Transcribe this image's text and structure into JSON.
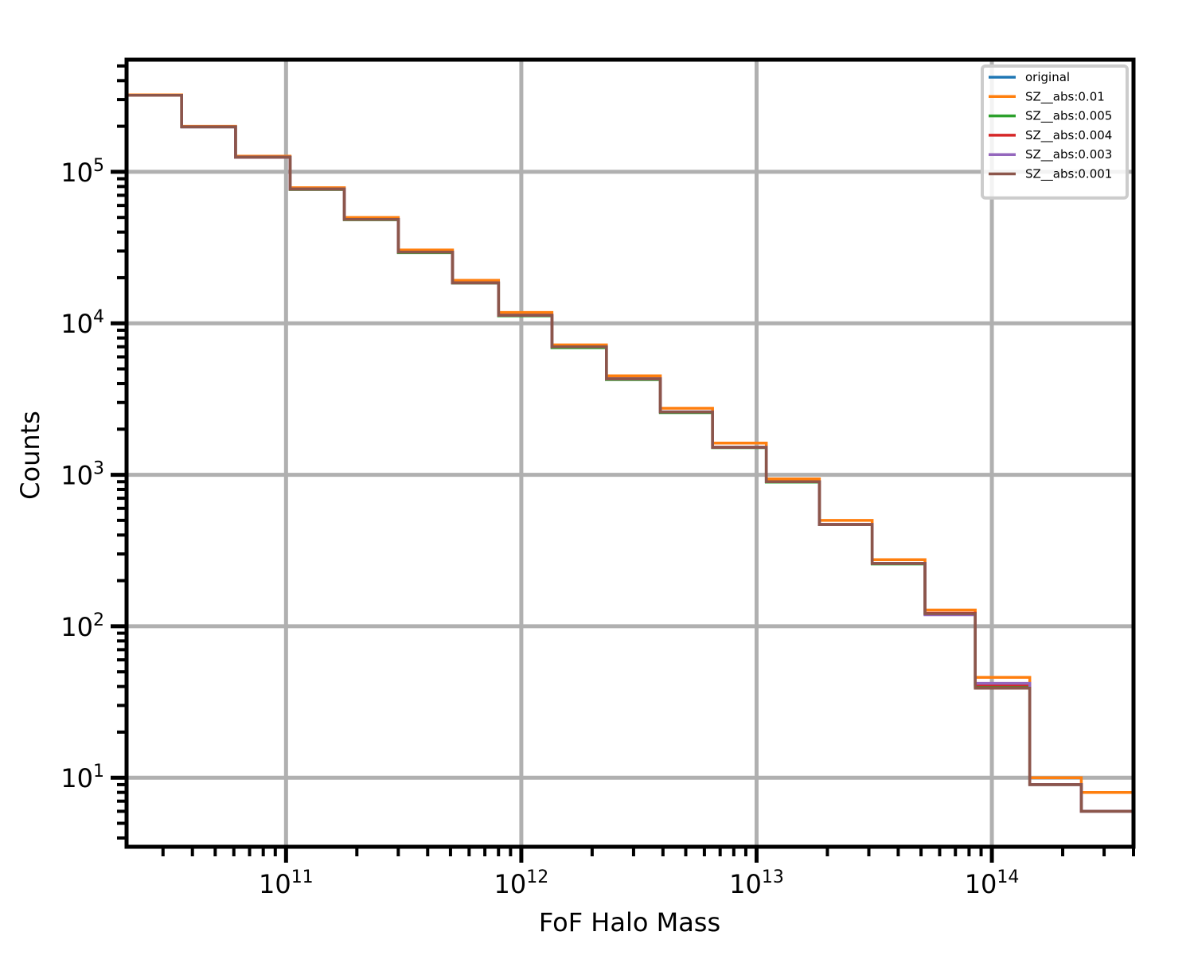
{
  "chart_data": {
    "type": "line",
    "subtype": "step-histogram",
    "title": "",
    "xlabel": "FoF Halo Mass",
    "ylabel": "Counts",
    "xscale": "log",
    "yscale": "log",
    "xlim": [
      21000000000.0,
      400000000000000.0
    ],
    "ylim": [
      3.5,
      550000.0
    ],
    "grid": true,
    "legend_position": "upper-right",
    "x_ticks": [
      {
        "value": 100000000000.0,
        "base": "10",
        "exp": "11"
      },
      {
        "value": 1000000000000.0,
        "base": "10",
        "exp": "12"
      },
      {
        "value": 10000000000000.0,
        "base": "10",
        "exp": "13"
      },
      {
        "value": 100000000000000.0,
        "base": "10",
        "exp": "14"
      }
    ],
    "y_ticks": [
      {
        "value": 10,
        "base": "10",
        "exp": "1"
      },
      {
        "value": 100,
        "base": "10",
        "exp": "2"
      },
      {
        "value": 1000,
        "base": "10",
        "exp": "3"
      },
      {
        "value": 10000,
        "base": "10",
        "exp": "4"
      },
      {
        "value": 100000,
        "base": "10",
        "exp": "5"
      }
    ],
    "bin_edges": [
      21000000000.0,
      36000000000.0,
      61000000000.0,
      104000000000.0,
      177000000000.0,
      300000000000.0,
      510000000000.0,
      800000000000.0,
      1350000000000.0,
      2300000000000.0,
      3900000000000.0,
      6500000000000.0,
      11000000000000.0,
      18500000000000.0,
      31000000000000.0,
      52000000000000.0,
      85000000000000.0,
      145000000000000.0,
      240000000000000.0,
      400000000000000.0
    ],
    "series": [
      {
        "name": "original",
        "color": "#1f77b4",
        "values": [
          320000,
          198000,
          125000,
          77000,
          48500,
          29500,
          18500,
          11300,
          7000,
          4300,
          2600,
          1520,
          900,
          470,
          260,
          121,
          40,
          9,
          6
        ]
      },
      {
        "name": "SZ__abs:0.01",
        "color": "#ff7f0e",
        "values": [
          322000,
          200000,
          127000,
          78500,
          50000,
          30500,
          19200,
          11800,
          7200,
          4500,
          2750,
          1620,
          940,
          500,
          275,
          128,
          46,
          10,
          8
        ]
      },
      {
        "name": "SZ__abs:0.005",
        "color": "#2ca02c",
        "values": [
          320000,
          198000,
          125000,
          76500,
          48300,
          29300,
          18400,
          11200,
          6900,
          4250,
          2570,
          1510,
          895,
          468,
          258,
          120,
          40,
          9,
          6
        ]
      },
      {
        "name": "SZ__abs:0.004",
        "color": "#d62728",
        "values": [
          320000,
          198000,
          125000,
          76800,
          48500,
          29500,
          18500,
          11300,
          7000,
          4300,
          2600,
          1520,
          900,
          470,
          260,
          122,
          41,
          9,
          6
        ]
      },
      {
        "name": "SZ__abs:0.003",
        "color": "#9467bd",
        "values": [
          320000,
          198000,
          125000,
          77000,
          48500,
          29500,
          18500,
          11300,
          7000,
          4300,
          2600,
          1520,
          900,
          470,
          260,
          119,
          42,
          9,
          6
        ]
      },
      {
        "name": "SZ__abs:0.001",
        "color": "#8c564b",
        "values": [
          320000,
          198000,
          125000,
          77000,
          48500,
          29500,
          18500,
          11300,
          7000,
          4300,
          2600,
          1520,
          900,
          470,
          260,
          121,
          39,
          9,
          6
        ]
      }
    ]
  }
}
